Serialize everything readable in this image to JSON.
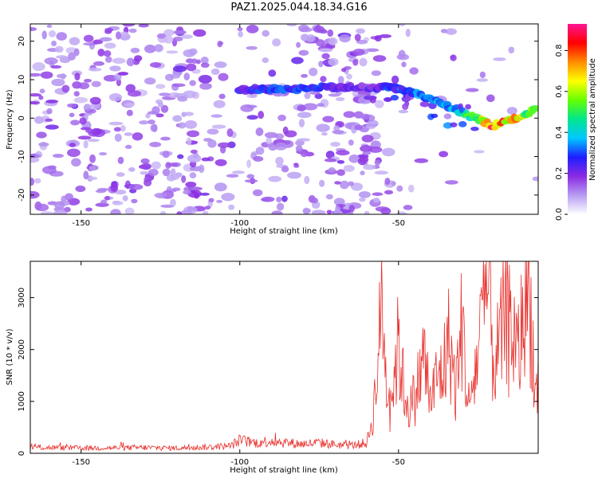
{
  "page_title": "PAZ1.2025.044.18.34.G16",
  "chart_data": [
    {
      "type": "heatmap",
      "title": "PAZ1.2025.044.18.34.G16",
      "xlabel": "Height of straight line (km)",
      "ylabel": "Frequency (Hz)",
      "xlim": [
        -166,
        -6
      ],
      "ylim": [
        -25,
        24.5
      ],
      "x_ticks": [
        -150,
        -100,
        -50
      ],
      "y_ticks": [
        -20,
        -10,
        0,
        10,
        20
      ],
      "colorbar": {
        "label": "Normalized spectral amplitude",
        "range": [
          0,
          0.93
        ],
        "ticks": [
          0.0,
          0.2,
          0.4,
          0.6,
          0.8
        ],
        "colormap": [
          "#ffffff",
          "#b79cf2",
          "#8a2be2",
          "#1e1eff",
          "#00c8ff",
          "#00e68c",
          "#66ff00",
          "#ffff00",
          "#ff8c00",
          "#ff0000",
          "#ff1493"
        ]
      },
      "signal_ridge": {
        "x": [
          -100,
          -90,
          -80,
          -70,
          -60,
          -50,
          -40,
          -30,
          -20,
          -10,
          -6
        ],
        "frequency": [
          7.5,
          7.5,
          7.8,
          8,
          8,
          7.8,
          5,
          1.5,
          -2,
          1,
          3.2
        ],
        "amplitude": [
          0.25,
          0.3,
          0.28,
          0.25,
          0.2,
          0.3,
          0.35,
          0.4,
          0.85,
          0.6,
          0.5
        ]
      }
    },
    {
      "type": "line",
      "xlabel": "Height of straight line (km)",
      "ylabel": "SNR (10 * v/v)",
      "xlim": [
        -166,
        -6
      ],
      "ylim": [
        0,
        3700
      ],
      "x_ticks": [
        -150,
        -100,
        -50
      ],
      "y_ticks": [
        0,
        1000,
        2000,
        3000
      ],
      "color": "#e8302c",
      "x": [
        -166,
        -160,
        -150,
        -140,
        -130,
        -120,
        -110,
        -103,
        -100,
        -95,
        -90,
        -85,
        -80,
        -75,
        -70,
        -65,
        -60,
        -58,
        -56,
        -55,
        -54,
        -52,
        -50,
        -48,
        -46,
        -44,
        -42,
        -40,
        -38,
        -36,
        -34,
        -32,
        -30,
        -28,
        -26,
        -24,
        -22,
        -20,
        -18,
        -16,
        -14,
        -12,
        -10,
        -8,
        -7,
        -6
      ],
      "y": [
        120,
        110,
        100,
        105,
        110,
        100,
        120,
        140,
        250,
        200,
        240,
        200,
        180,
        200,
        170,
        150,
        200,
        700,
        2200,
        3100,
        1400,
        1200,
        2100,
        1100,
        900,
        1300,
        1900,
        1000,
        1400,
        1600,
        2200,
        1200,
        2500,
        900,
        1500,
        2400,
        3300,
        1700,
        2100,
        2800,
        2300,
        1900,
        3300,
        2600,
        1000,
        1500
      ]
    }
  ]
}
